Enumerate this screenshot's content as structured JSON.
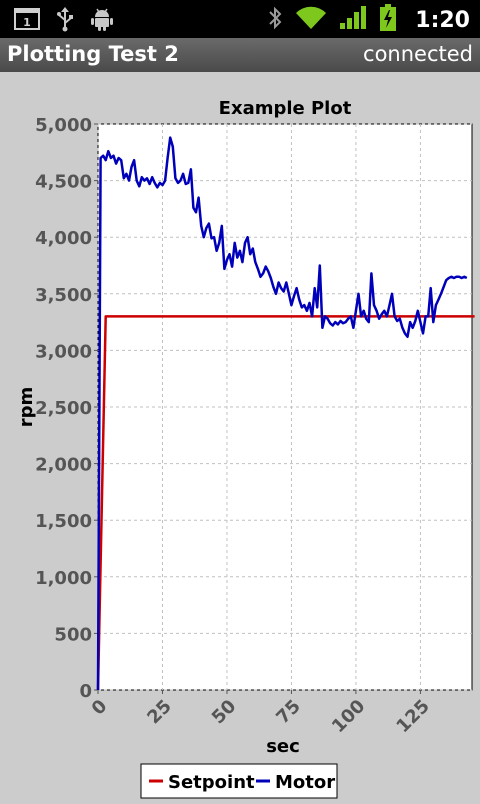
{
  "status_bar": {
    "notification_count": "1",
    "time": "1:20",
    "icons": [
      "notification-icon",
      "usb-icon",
      "android-debug-icon",
      "bluetooth-icon",
      "wifi-icon",
      "signal-icon",
      "battery-charging-icon"
    ]
  },
  "app": {
    "title": "Plotting Test 2",
    "status": "connected"
  },
  "colors": {
    "setpoint": "#cc0000",
    "motor": "#0000bb",
    "grid": "#c0c0c0"
  },
  "chart_data": {
    "type": "line",
    "title": "Example Plot",
    "xlabel": "sec",
    "ylabel": "rpm",
    "xlim": [
      0,
      145
    ],
    "ylim": [
      0,
      5000
    ],
    "xticks": [
      0,
      25,
      50,
      75,
      100,
      125
    ],
    "xtick_labels": [
      "0",
      "25",
      "50",
      "75",
      "100",
      "125"
    ],
    "yticks": [
      0,
      500,
      1000,
      1500,
      2000,
      2500,
      3000,
      3500,
      4000,
      4500,
      5000
    ],
    "ytick_labels": [
      "0",
      "500",
      "1,000",
      "1,500",
      "2,000",
      "2,500",
      "3,000",
      "3,500",
      "4,000",
      "4,500",
      "5,000"
    ],
    "grid": true,
    "legend_position": "bottom",
    "series": [
      {
        "name": "Setpoint",
        "x": [
          0,
          3,
          146
        ],
        "y": [
          0,
          3300,
          3300
        ]
      },
      {
        "name": "Motor",
        "x": [
          0,
          1,
          2,
          3,
          4,
          5,
          6,
          7,
          8,
          9,
          10,
          11,
          12,
          13,
          14,
          15,
          16,
          17,
          18,
          19,
          20,
          21,
          22,
          23,
          24,
          25,
          26,
          27,
          28,
          29,
          30,
          31,
          32,
          33,
          34,
          35,
          36,
          37,
          38,
          39,
          40,
          41,
          42,
          43,
          44,
          45,
          46,
          47,
          48,
          49,
          50,
          51,
          52,
          53,
          54,
          55,
          56,
          57,
          58,
          59,
          60,
          61,
          62,
          63,
          64,
          65,
          66,
          67,
          68,
          69,
          70,
          71,
          72,
          73,
          74,
          75,
          76,
          77,
          78,
          79,
          80,
          81,
          82,
          83,
          84,
          85,
          86,
          87,
          88,
          89,
          90,
          91,
          92,
          93,
          94,
          95,
          96,
          97,
          98,
          99,
          100,
          101,
          102,
          103,
          104,
          105,
          106,
          107,
          108,
          109,
          110,
          111,
          112,
          113,
          114,
          115,
          116,
          117,
          118,
          119,
          120,
          121,
          122,
          123,
          124,
          125,
          126,
          127,
          128,
          129,
          130,
          131,
          132,
          133,
          134,
          135,
          136,
          137,
          138,
          139,
          140,
          141,
          142,
          143
        ],
        "y": [
          0,
          4700,
          4720,
          4680,
          4760,
          4700,
          4720,
          4650,
          4700,
          4680,
          4520,
          4560,
          4500,
          4620,
          4680,
          4500,
          4450,
          4530,
          4500,
          4520,
          4470,
          4530,
          4480,
          4440,
          4480,
          4460,
          4500,
          4700,
          4880,
          4800,
          4520,
          4480,
          4500,
          4560,
          4470,
          4480,
          4600,
          4260,
          4220,
          4350,
          4100,
          4000,
          4080,
          4120,
          3990,
          4000,
          3880,
          3950,
          4100,
          3720,
          3800,
          3850,
          3740,
          3950,
          3820,
          3880,
          3780,
          3950,
          4000,
          3850,
          3900,
          3780,
          3720,
          3650,
          3680,
          3740,
          3700,
          3640,
          3560,
          3500,
          3600,
          3550,
          3520,
          3600,
          3500,
          3400,
          3480,
          3550,
          3450,
          3380,
          3400,
          3350,
          3420,
          3300,
          3550,
          3380,
          3750,
          3200,
          3300,
          3280,
          3240,
          3220,
          3250,
          3230,
          3260,
          3240,
          3250,
          3280,
          3300,
          3200,
          3350,
          3500,
          3300,
          3350,
          3280,
          3250,
          3680,
          3400,
          3350,
          3280,
          3320,
          3350,
          3300,
          3400,
          3500,
          3300,
          3260,
          3280,
          3200,
          3150,
          3120,
          3250,
          3200,
          3260,
          3350,
          3250,
          3150,
          3300,
          3300,
          3550,
          3250,
          3400,
          3450,
          3500,
          3560,
          3620,
          3640,
          3650,
          3640,
          3650,
          3650,
          3640,
          3650,
          3640
        ]
      }
    ]
  }
}
